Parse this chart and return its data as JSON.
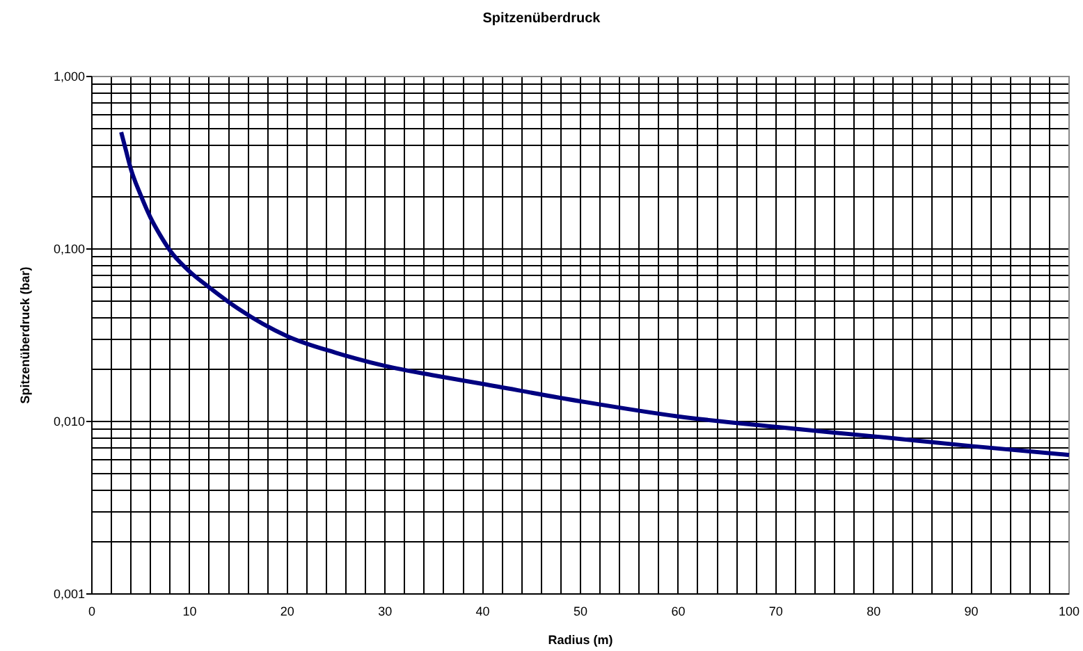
{
  "chart_data": {
    "type": "line",
    "title": "Spitzenüberdruck",
    "xlabel": "Radius (m)",
    "ylabel": "Spitzenüberdruck (bar)",
    "log": "y",
    "grid": true,
    "marker": "none",
    "line_style": "solid",
    "xlim": [
      0,
      100
    ],
    "ylim": [
      0.001,
      1
    ],
    "xticks": [
      0,
      {
        "value": 2,
        "label": null
      },
      {
        "value": 4,
        "label": null
      },
      {
        "value": 6,
        "label": null
      },
      {
        "value": 8,
        "label": null
      },
      10,
      {
        "value": 12,
        "label": null
      },
      {
        "value": 14,
        "label": null
      },
      {
        "value": 16,
        "label": null
      },
      {
        "value": 18,
        "label": null
      },
      20,
      {
        "value": 22,
        "label": null
      },
      {
        "value": 24,
        "label": null
      },
      {
        "value": 26,
        "label": null
      },
      {
        "value": 28,
        "label": null
      },
      30,
      {
        "value": 32,
        "label": null
      },
      {
        "value": 34,
        "label": null
      },
      {
        "value": 36,
        "label": null
      },
      {
        "value": 38,
        "label": null
      },
      40,
      {
        "value": 42,
        "label": null
      },
      {
        "value": 44,
        "label": null
      },
      {
        "value": 46,
        "label": null
      },
      {
        "value": 48,
        "label": null
      },
      50,
      {
        "value": 52,
        "label": null
      },
      {
        "value": 54,
        "label": null
      },
      {
        "value": 56,
        "label": null
      },
      {
        "value": 58,
        "label": null
      },
      60,
      {
        "value": 62,
        "label": null
      },
      {
        "value": 64,
        "label": null
      },
      {
        "value": 66,
        "label": null
      },
      {
        "value": 68,
        "label": null
      },
      70,
      {
        "value": 72,
        "label": null
      },
      {
        "value": 74,
        "label": null
      },
      {
        "value": 76,
        "label": null
      },
      {
        "value": 78,
        "label": null
      },
      80,
      {
        "value": 82,
        "label": null
      },
      {
        "value": 84,
        "label": null
      },
      {
        "value": 86,
        "label": null
      },
      {
        "value": 88,
        "label": null
      },
      90,
      {
        "value": 92,
        "label": null
      },
      {
        "value": 94,
        "label": null
      },
      {
        "value": 96,
        "label": null
      },
      {
        "value": 98,
        "label": null
      },
      100
    ],
    "yticks": [
      {
        "value": 0.001,
        "label": "0,001"
      },
      {
        "value": 0.002,
        "label": null
      },
      {
        "value": 0.003,
        "label": null
      },
      {
        "value": 0.004,
        "label": null
      },
      {
        "value": 0.005,
        "label": null
      },
      {
        "value": 0.006,
        "label": null
      },
      {
        "value": 0.007,
        "label": null
      },
      {
        "value": 0.008,
        "label": null
      },
      {
        "value": 0.009,
        "label": null
      },
      {
        "value": 0.01,
        "label": "0,010"
      },
      {
        "value": 0.02,
        "label": null
      },
      {
        "value": 0.03,
        "label": null
      },
      {
        "value": 0.04,
        "label": null
      },
      {
        "value": 0.05,
        "label": null
      },
      {
        "value": 0.06,
        "label": null
      },
      {
        "value": 0.07,
        "label": null
      },
      {
        "value": 0.08,
        "label": null
      },
      {
        "value": 0.09,
        "label": null
      },
      {
        "value": 0.1,
        "label": "0,100"
      },
      {
        "value": 0.2,
        "label": null
      },
      {
        "value": 0.3,
        "label": null
      },
      {
        "value": 0.4,
        "label": null
      },
      {
        "value": 0.5,
        "label": null
      },
      {
        "value": 0.6,
        "label": null
      },
      {
        "value": 0.7,
        "label": null
      },
      {
        "value": 0.8,
        "label": null
      },
      {
        "value": 0.9,
        "label": null
      },
      {
        "value": 1,
        "label": "1,000"
      }
    ],
    "x": [
      3,
      3.5,
      4,
      5,
      6,
      7,
      8,
      10,
      12,
      15,
      20,
      25,
      30,
      35,
      40,
      50,
      60,
      70,
      80,
      90,
      100
    ],
    "series": [
      {
        "color": "#000080",
        "values": [
          0.476,
          0.37,
          0.29,
          0.205,
          0.152,
          0.12,
          0.098,
          0.074,
          0.06,
          0.045,
          0.0312,
          0.025,
          0.021,
          0.0185,
          0.0165,
          0.0131,
          0.0107,
          0.0093,
          0.0082,
          0.0072,
          0.0064
        ]
      }
    ]
  }
}
